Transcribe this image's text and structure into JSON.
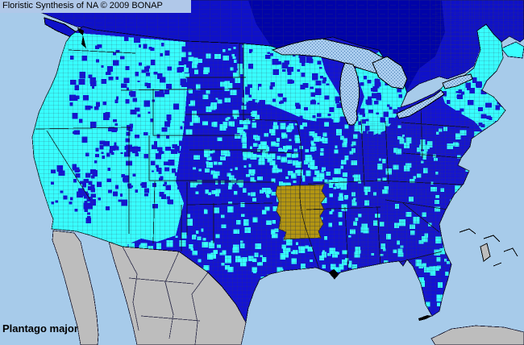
{
  "header": {
    "title": "Floristic Synthesis of NA © 2009 BONAP"
  },
  "species": {
    "label": "Plantago major"
  },
  "colors": {
    "ocean": "#A7CBEA",
    "title_bar": "#B0C8E9",
    "text": "#000000",
    "county_blue": "#1414D2",
    "county_cyan": "#38FFFF",
    "arkansas_gold": "#B29512",
    "canada_blue": "#0F11C9",
    "canada_navy": "#0003A8",
    "land_gray": "#BDBDBD",
    "lake_fill": "#A9CCEE",
    "lake_dot": "#4A7FB5",
    "county_line": "#3C3C52",
    "canada_line": "#2C2C70",
    "coast_line": "#000000"
  }
}
